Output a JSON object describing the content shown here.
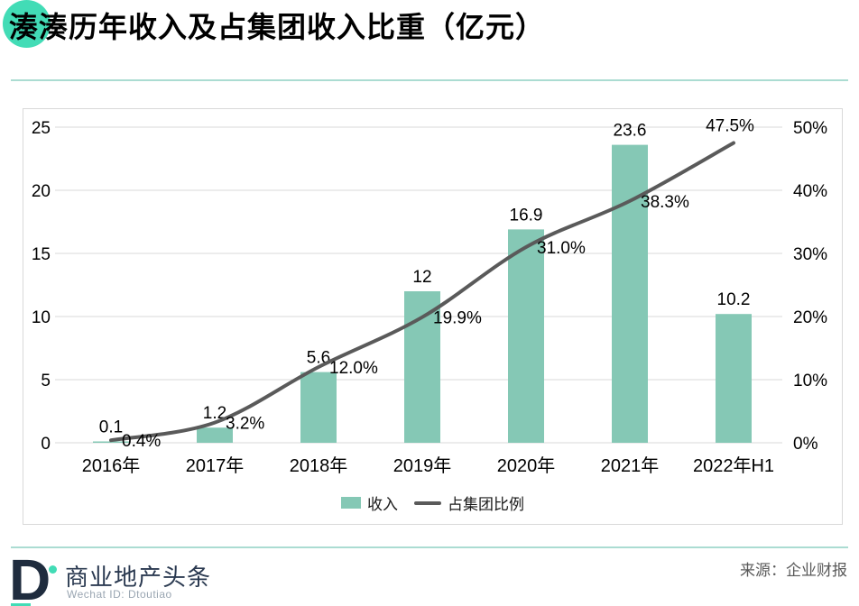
{
  "title": "湊湊历年收入及占集团收入比重（亿元）",
  "colors": {
    "accent": "#42dcb6",
    "rule": "#abdcd2",
    "bar": "#85c8b5",
    "line": "#5a5a5a",
    "grid": "#d9d9d9",
    "navy": "#1f2c3e"
  },
  "chart_data": {
    "type": "bar",
    "subtype": "combo-bar-line",
    "title": "湊湊历年收入及占集团收入比重（亿元）",
    "categories": [
      "2016年",
      "2017年",
      "2018年",
      "2019年",
      "2020年",
      "2021年",
      "2022年H1"
    ],
    "series": [
      {
        "name": "收入",
        "type": "bar",
        "axis": "left",
        "color": "#85c8b5",
        "values": [
          0.1,
          1.2,
          5.6,
          12,
          16.9,
          23.6,
          10.2
        ],
        "labels": [
          "0.1",
          "1.2",
          "5.6",
          "12",
          "16.9",
          "23.6",
          "10.2"
        ]
      },
      {
        "name": "占集团比例",
        "type": "line",
        "axis": "right",
        "color": "#5a5a5a",
        "values": [
          0.4,
          3.2,
          12.0,
          19.9,
          31.0,
          38.3,
          47.5
        ],
        "labels": [
          "0.4%",
          "3.2%",
          "12.0%",
          "19.9%",
          "31.0%",
          "38.3%",
          "47.5%"
        ]
      }
    ],
    "left_axis": {
      "min": 0,
      "max": 25,
      "ticks": [
        "0",
        "5",
        "10",
        "15",
        "20",
        "25"
      ]
    },
    "right_axis": {
      "min": 0,
      "max": 50,
      "ticks": [
        "0%",
        "10%",
        "20%",
        "30%",
        "40%",
        "50%"
      ]
    },
    "grid": true,
    "legend_position": "bottom"
  },
  "footer": {
    "brand_letter": "D",
    "brand": "商业地产头条",
    "wechat": "Wechat ID: Dtoutiao",
    "source": "来源：企业财报"
  }
}
